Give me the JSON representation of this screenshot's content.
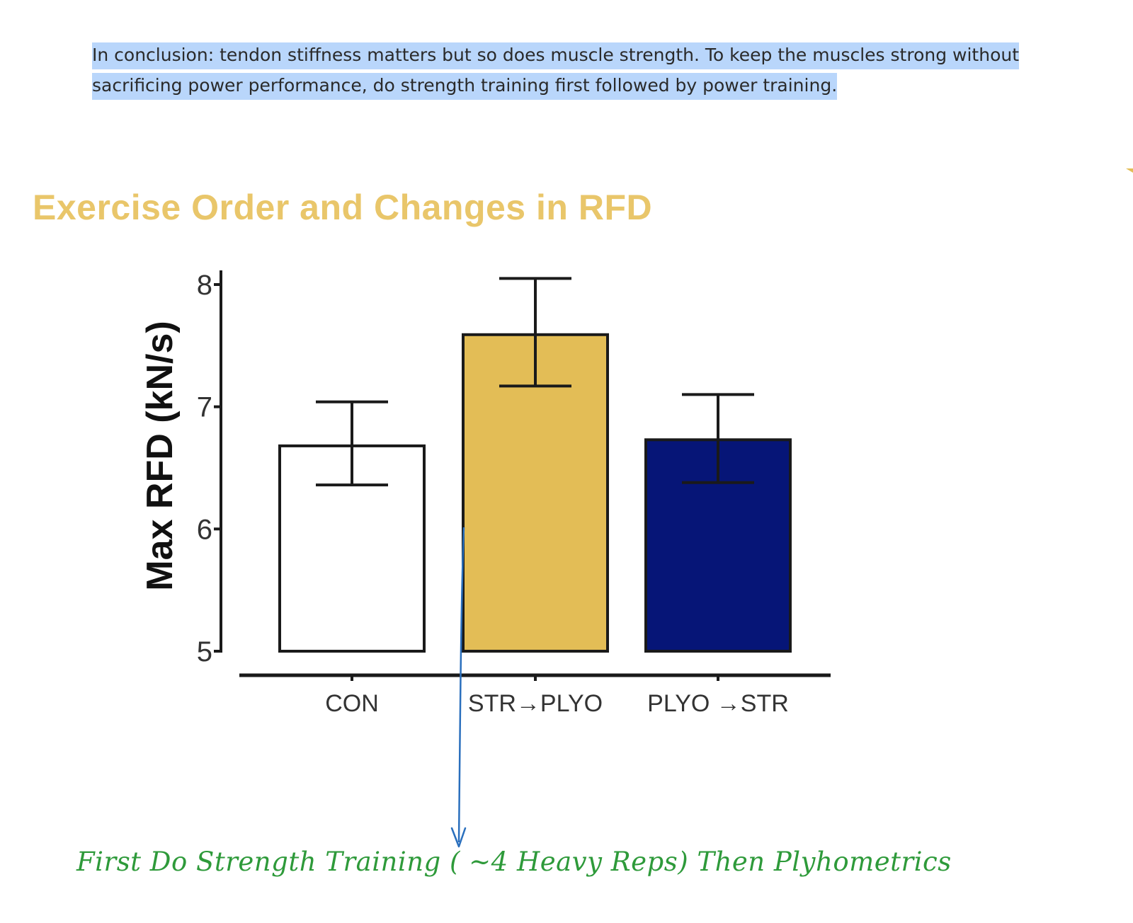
{
  "paragraph": {
    "line1": "In conclusion: tendon stiffness matters but so does muscle strength. To keep the muscles strong without",
    "line2": "sacrificing power performance, do strength training first followed by power training."
  },
  "annotation": {
    "text": "First Do Strength Training ( ~4 Heavy Reps) Then Plyhometrics",
    "color": "#2e9a3a",
    "arrow_color": "#2a6fbd"
  },
  "colors": {
    "title": "#e9c66a",
    "highlight": "#b9d6fb"
  },
  "chart_data": {
    "type": "bar",
    "title": "Exercise Order and Changes in RFD",
    "ylabel": "Max RFD (kN/s)",
    "xlabel": "",
    "categories": [
      "CON",
      "STR→PLYO",
      "PLYO →STR"
    ],
    "values": [
      6.68,
      7.59,
      6.73
    ],
    "error_upper": [
      7.04,
      8.05,
      7.1
    ],
    "error_lower": [
      6.36,
      7.17,
      6.38
    ],
    "bar_colors": [
      "#ffffff",
      "#e3bd56",
      "#061577"
    ],
    "ylim": [
      5,
      8
    ],
    "yticks": [
      5,
      6,
      7,
      8
    ],
    "grid": false,
    "legend": "none"
  }
}
